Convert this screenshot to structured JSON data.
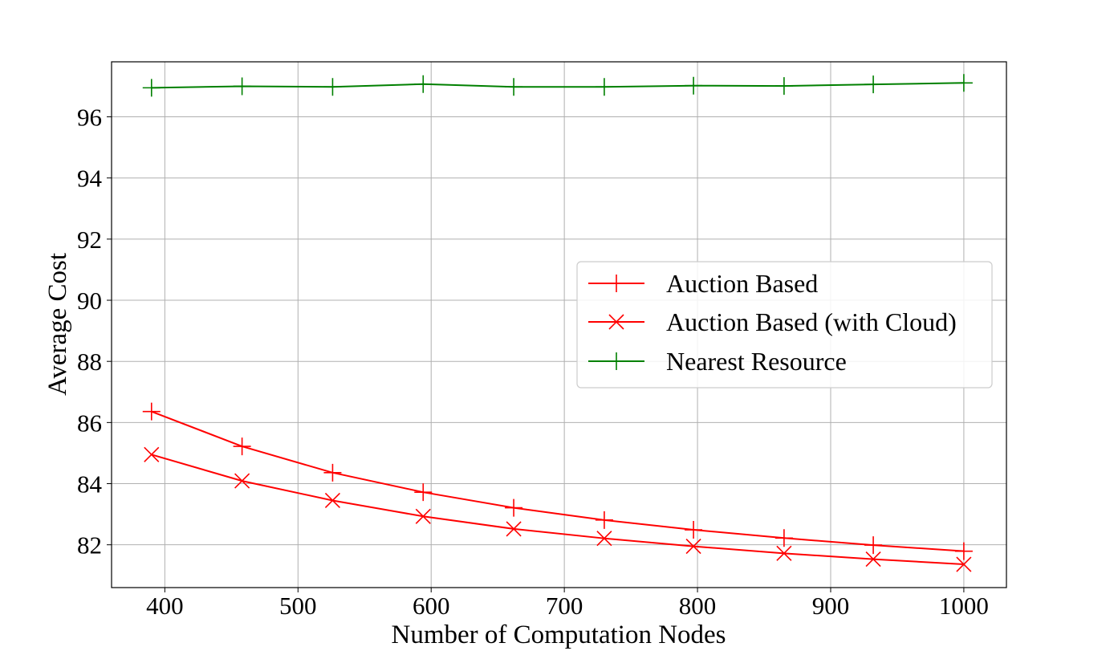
{
  "chart_data": {
    "type": "line",
    "title": "",
    "xlabel": "Number of Computation Nodes",
    "ylabel": "Average Cost",
    "xlim": [
      360,
      1032
    ],
    "ylim": [
      80.6,
      97.8
    ],
    "xticks": [
      400,
      500,
      600,
      700,
      800,
      900,
      1000
    ],
    "yticks": [
      82,
      84,
      86,
      88,
      90,
      92,
      94,
      96
    ],
    "grid": true,
    "legend_position": "center-right",
    "x": [
      390,
      458,
      526,
      594,
      662,
      730,
      797,
      865,
      932,
      1000
    ],
    "series": [
      {
        "name": "Auction Based",
        "color": "#ff0000",
        "marker": "plus",
        "values": [
          86.36,
          85.22,
          84.36,
          83.72,
          83.21,
          82.81,
          82.49,
          82.22,
          81.99,
          81.79
        ]
      },
      {
        "name": "Auction Based (with Cloud)",
        "color": "#ff0000",
        "marker": "x",
        "values": [
          84.95,
          84.09,
          83.45,
          82.93,
          82.52,
          82.21,
          81.95,
          81.72,
          81.53,
          81.36
        ]
      },
      {
        "name": "Nearest Resource",
        "color": "#008000",
        "marker": "plus",
        "values": [
          96.95,
          97.0,
          96.98,
          97.07,
          96.98,
          96.98,
          97.02,
          97.01,
          97.06,
          97.11
        ]
      }
    ]
  }
}
